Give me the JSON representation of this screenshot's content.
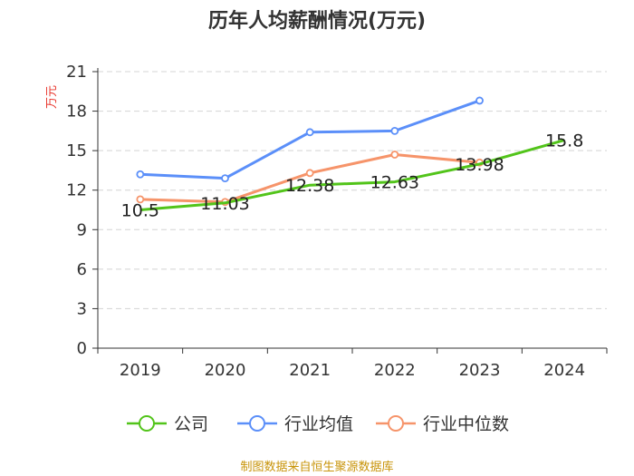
{
  "chart_data": {
    "type": "line",
    "title": "历年人均薪酬情况(万元)",
    "ylabel": "万元",
    "xlabel": "",
    "categories": [
      "2019",
      "2020",
      "2021",
      "2022",
      "2023",
      "2024"
    ],
    "ylim": [
      0,
      21
    ],
    "yticks": [
      0,
      3,
      6,
      9,
      12,
      15,
      18,
      21
    ],
    "grid": true,
    "legend_position": "bottom",
    "series": [
      {
        "name": "公司",
        "color": "#52c41a",
        "values": [
          10.5,
          11.03,
          12.38,
          12.63,
          13.98,
          15.8
        ],
        "labels": [
          "10.5",
          "11.03",
          "12.38",
          "12.63",
          "13.98",
          "15.8"
        ]
      },
      {
        "name": "行业均值",
        "color": "#5b8ff9",
        "values": [
          13.2,
          12.9,
          16.4,
          16.5,
          18.8,
          null
        ]
      },
      {
        "name": "行业中位数",
        "color": "#f6946a",
        "values": [
          11.3,
          11.1,
          13.3,
          14.7,
          14.1,
          null
        ]
      }
    ]
  },
  "source": "制图数据来自恒生聚源数据库"
}
